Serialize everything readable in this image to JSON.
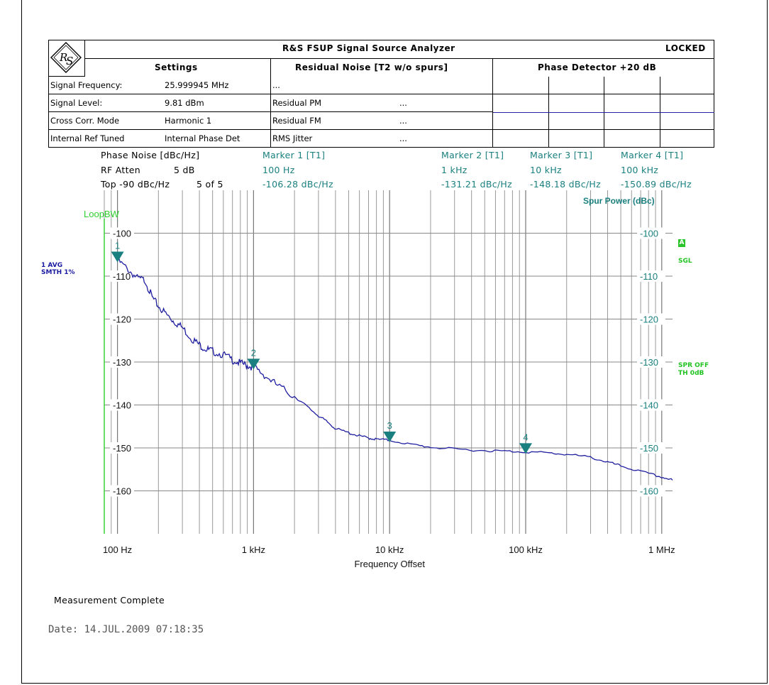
{
  "header": {
    "title": "R&S FSUP Signal Source Analyzer",
    "status": "LOCKED",
    "settings_title": "Settings",
    "residual_title": "Residual Noise [T2 w/o spurs]",
    "detector_title": "Phase Detector +20 dB",
    "rows": [
      {
        "label": "Signal Frequency:",
        "value": "25.999945 MHz",
        "rlabel": "...",
        "rvalue": ""
      },
      {
        "label": "Signal Level:",
        "value": "9.81 dBm",
        "rlabel": "Residual PM",
        "rvalue": "..."
      },
      {
        "label": "Cross Corr. Mode",
        "value": "Harmonic 1",
        "rlabel": "Residual FM",
        "rvalue": "..."
      },
      {
        "label": "Internal Ref Tuned",
        "value": "Internal Phase Det",
        "rlabel": "RMS Jitter",
        "rvalue": "..."
      }
    ]
  },
  "info": {
    "phase_noise_label": "Phase Noise [dBc/Hz]",
    "rf_atten_label": "RF Atten",
    "rf_atten_value": "5 dB",
    "top_label": "Top -90 dBc/Hz",
    "sweep": "5 of 5",
    "markers": [
      {
        "title": "Marker 1 [T1]",
        "freq": "100 Hz",
        "level": "-106.28 dBc/Hz"
      },
      {
        "title": "Marker 2 [T1]",
        "freq": "1 kHz",
        "level": "-131.21 dBc/Hz"
      },
      {
        "title": "Marker 3 [T1]",
        "freq": "10 kHz",
        "level": "-148.18 dBc/Hz"
      },
      {
        "title": "Marker 4 [T1]",
        "freq": "100 kHz",
        "level": "-150.89 dBc/Hz"
      }
    ]
  },
  "side_labels": {
    "loop_bw": "LoopBW",
    "avg": "1 AVG",
    "smth": "SMTH 1%",
    "a_badge": "A",
    "sgl": "SGL",
    "spr_off": "SPR OFF",
    "th": "TH 0dB",
    "spur_power": "Spur Power (dBc)"
  },
  "chart_data": {
    "type": "line",
    "xlabel": "Frequency Offset",
    "ylabel": "Phase Noise [dBc/Hz]",
    "x_scale": "log",
    "xlim": [
      80,
      1200000
    ],
    "ylim": [
      -170,
      -90
    ],
    "grid": true,
    "x_ticks": [
      {
        "value": 100,
        "label": "100 Hz"
      },
      {
        "value": 1000,
        "label": "1 kHz"
      },
      {
        "value": 10000,
        "label": "10 kHz"
      },
      {
        "value": 100000,
        "label": "100 kHz"
      },
      {
        "value": 1000000,
        "label": "1 MHz"
      }
    ],
    "y_ticks": [
      {
        "value": -100,
        "label": "-100"
      },
      {
        "value": -110,
        "label": "-110"
      },
      {
        "value": -120,
        "label": "-120"
      },
      {
        "value": -130,
        "label": "-130"
      },
      {
        "value": -140,
        "label": "-140"
      },
      {
        "value": -150,
        "label": "-150"
      },
      {
        "value": -160,
        "label": "-160"
      }
    ],
    "series": [
      {
        "color": "#1f1fa0",
        "x": [
          100,
          120,
          140,
          160,
          180,
          200,
          230,
          260,
          300,
          350,
          400,
          450,
          500,
          600,
          700,
          800,
          900,
          1000,
          1200,
          1500,
          2000,
          2500,
          3000,
          3500,
          4000,
          5000,
          6000,
          7000,
          8000,
          10000,
          15000,
          20000,
          30000,
          50000,
          70000,
          100000,
          150000,
          200000,
          300000,
          400000,
          500000,
          700000,
          1000000,
          1200000
        ],
        "y": [
          -106.3,
          -108.5,
          -110.5,
          -111,
          -115,
          -117,
          -119,
          -120.5,
          -122,
          -124.5,
          -126,
          -127,
          -127.5,
          -128.3,
          -129.5,
          -130.3,
          -130.8,
          -131.2,
          -133,
          -135.5,
          -138,
          -140.5,
          -142.5,
          -144,
          -145.5,
          -146.5,
          -147.2,
          -147.7,
          -148,
          -148.2,
          -149.3,
          -149.8,
          -150.3,
          -150.6,
          -150.75,
          -150.9,
          -151.2,
          -151.5,
          -152.2,
          -153.3,
          -154.2,
          -155.5,
          -156.8,
          -157.5
        ]
      }
    ],
    "markers": [
      {
        "label": "1",
        "x": 100,
        "y": -106.28
      },
      {
        "label": "2",
        "x": 1000,
        "y": -131.21
      },
      {
        "label": "3",
        "x": 10000,
        "y": -148.18
      },
      {
        "label": "4",
        "x": 100000,
        "y": -150.89
      }
    ]
  },
  "footer": {
    "status": "Measurement Complete",
    "date": "Date: 14.JUL.2009  07:18:35"
  }
}
